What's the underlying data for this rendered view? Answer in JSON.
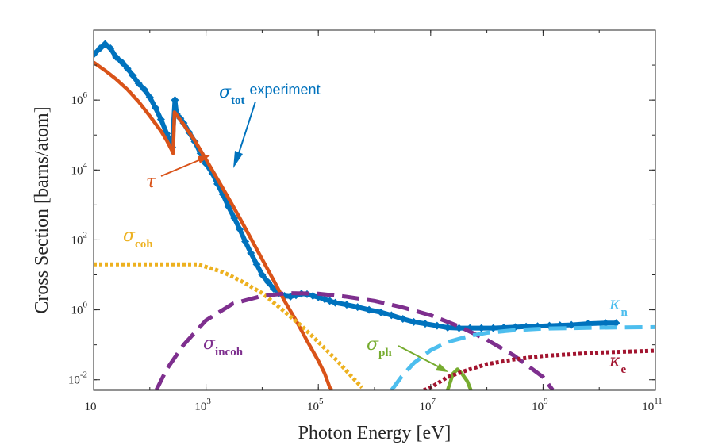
{
  "chart_data": {
    "type": "line",
    "xlabel": "Photon Energy [eV]",
    "ylabel": "Cross Section [barns/atom]",
    "xscale": "log",
    "yscale": "log",
    "xlim": [
      10,
      100000000000
    ],
    "ylim": [
      0.005,
      100000000
    ],
    "grid": false,
    "x_ticks": [
      {
        "value": 10,
        "base": "10",
        "exp": ""
      },
      {
        "value": 1000,
        "base": "10",
        "exp": "3"
      },
      {
        "value": 100000,
        "base": "10",
        "exp": "5"
      },
      {
        "value": 10000000,
        "base": "10",
        "exp": "7"
      },
      {
        "value": 1000000000,
        "base": "10",
        "exp": "9"
      },
      {
        "value": 100000000000,
        "base": "10",
        "exp": "11"
      }
    ],
    "y_ticks": [
      {
        "value": 0.01,
        "base": "10",
        "exp": "-2"
      },
      {
        "value": 1,
        "base": "10",
        "exp": "0"
      },
      {
        "value": 100,
        "base": "10",
        "exp": "2"
      },
      {
        "value": 10000,
        "base": "10",
        "exp": "4"
      },
      {
        "value": 1000000,
        "base": "10",
        "exp": "6"
      }
    ],
    "series": [
      {
        "name": "σ_tot experiment",
        "color": "#0072BD",
        "style": "markers",
        "points": [
          [
            10,
            20000000
          ],
          [
            13,
            30000000
          ],
          [
            16,
            40000000
          ],
          [
            20,
            30000000
          ],
          [
            25,
            17000000
          ],
          [
            32,
            12000000
          ],
          [
            40,
            8000000
          ],
          [
            50,
            5000000
          ],
          [
            63,
            3000000
          ],
          [
            80,
            2000000
          ],
          [
            100,
            1200000
          ],
          [
            126,
            600000
          ],
          [
            158,
            280000
          ],
          [
            200,
            110000
          ],
          [
            250,
            45000
          ],
          [
            280,
            1000000
          ],
          [
            300,
            400000
          ],
          [
            350,
            300000
          ],
          [
            400,
            220000
          ],
          [
            500,
            120000
          ],
          [
            630,
            65000
          ],
          [
            800,
            30000
          ],
          [
            1000,
            15000
          ],
          [
            1300,
            8000
          ],
          [
            1600,
            4000
          ],
          [
            2000,
            2000
          ],
          [
            2500,
            900
          ],
          [
            3200,
            420
          ],
          [
            4000,
            200
          ],
          [
            5000,
            90
          ],
          [
            6300,
            42
          ],
          [
            8000,
            20
          ],
          [
            10000,
            10
          ],
          [
            13000,
            6
          ],
          [
            16000,
            4
          ],
          [
            20000,
            3
          ],
          [
            25000,
            2.5
          ],
          [
            32000,
            2.4
          ],
          [
            40000,
            2.6
          ],
          [
            50000,
            2.9
          ],
          [
            63000,
            2.8
          ],
          [
            80000,
            2.5
          ],
          [
            100000,
            2.3
          ],
          [
            130000,
            2.0
          ],
          [
            160000,
            1.8
          ],
          [
            200000,
            1.6
          ],
          [
            320000,
            1.4
          ],
          [
            500000,
            1.2
          ],
          [
            800000,
            1.0
          ],
          [
            1300000,
            0.85
          ],
          [
            2000000,
            0.7
          ],
          [
            3200000,
            0.55
          ],
          [
            5000000,
            0.45
          ],
          [
            8000000,
            0.4
          ],
          [
            13000000,
            0.35
          ],
          [
            20000000,
            0.31
          ],
          [
            32000000,
            0.3
          ],
          [
            50000000,
            0.3
          ],
          [
            80000000,
            0.3
          ],
          [
            130000000,
            0.3
          ],
          [
            200000000,
            0.31
          ],
          [
            320000000,
            0.32
          ],
          [
            500000000,
            0.33
          ],
          [
            800000000,
            0.34
          ],
          [
            1300000000,
            0.35
          ],
          [
            2000000000,
            0.36
          ],
          [
            3200000000,
            0.37
          ],
          [
            6300000000,
            0.4
          ],
          [
            13000000000,
            0.42
          ],
          [
            20000000000,
            0.42
          ]
        ]
      },
      {
        "name": "τ",
        "color": "#D95319",
        "style": "solid",
        "points": [
          [
            10,
            12000000
          ],
          [
            16,
            7000000
          ],
          [
            25,
            4000000
          ],
          [
            40,
            2000000
          ],
          [
            63,
            900000
          ],
          [
            100,
            350000
          ],
          [
            158,
            130000
          ],
          [
            200,
            70000
          ],
          [
            250,
            35000
          ],
          [
            260,
            30000
          ],
          [
            275,
            450000
          ],
          [
            300,
            380000
          ],
          [
            400,
            200000
          ],
          [
            630,
            70000
          ],
          [
            1000,
            20000
          ],
          [
            1600,
            5500
          ],
          [
            2500,
            1600
          ],
          [
            4000,
            420
          ],
          [
            6300,
            110
          ],
          [
            10000,
            28
          ],
          [
            16000,
            7
          ],
          [
            25000,
            1.8
          ],
          [
            40000,
            0.5
          ],
          [
            63000,
            0.13
          ],
          [
            100000,
            0.035
          ],
          [
            130000,
            0.015
          ],
          [
            160000,
            0.006
          ],
          [
            175000,
            0.005
          ]
        ]
      },
      {
        "name": "σ_coh",
        "color": "#EDB120",
        "style": "dotted",
        "points": [
          [
            10,
            20
          ],
          [
            100,
            20
          ],
          [
            300,
            20
          ],
          [
            700,
            20
          ],
          [
            1000,
            17
          ],
          [
            2000,
            12
          ],
          [
            4000,
            7
          ],
          [
            10000,
            3
          ],
          [
            20000,
            1.2
          ],
          [
            50000,
            0.35
          ],
          [
            100000,
            0.12
          ],
          [
            200000,
            0.04
          ],
          [
            400000,
            0.012
          ],
          [
            600000,
            0.006
          ]
        ]
      },
      {
        "name": "σ_incoh",
        "color": "#7E2F8E",
        "style": "dashed",
        "points": [
          [
            130,
            0.005
          ],
          [
            200,
            0.02
          ],
          [
            400,
            0.1
          ],
          [
            1000,
            0.5
          ],
          [
            3000,
            1.5
          ],
          [
            10000,
            2.5
          ],
          [
            30000,
            3
          ],
          [
            100000,
            2.9
          ],
          [
            300000,
            2.4
          ],
          [
            1000000,
            1.8
          ],
          [
            3000000,
            1.2
          ],
          [
            10000000,
            0.7
          ],
          [
            30000000,
            0.35
          ],
          [
            100000000,
            0.14
          ],
          [
            300000000,
            0.05
          ],
          [
            1000000000,
            0.012
          ],
          [
            1500000000,
            0.005
          ]
        ]
      },
      {
        "name": "σ_ph",
        "color": "#77AC30",
        "style": "solid",
        "points": [
          [
            20000000,
            0.005
          ],
          [
            25000000,
            0.015
          ],
          [
            30000000,
            0.02
          ],
          [
            36000000,
            0.015
          ],
          [
            45000000,
            0.009
          ],
          [
            52000000,
            0.005
          ]
        ]
      },
      {
        "name": "κ_n",
        "color": "#4DBEEE",
        "style": "dashed",
        "points": [
          [
            2000000,
            0.005
          ],
          [
            3000000,
            0.012
          ],
          [
            5000000,
            0.03
          ],
          [
            10000000,
            0.07
          ],
          [
            20000000,
            0.12
          ],
          [
            50000000,
            0.18
          ],
          [
            100000000,
            0.22
          ],
          [
            300000000,
            0.26
          ],
          [
            1000000000,
            0.29
          ],
          [
            10000000000,
            0.31
          ],
          [
            100000000000,
            0.32
          ]
        ]
      },
      {
        "name": "κ_e",
        "color": "#A2142F",
        "style": "dotted",
        "points": [
          [
            7500000,
            0.005
          ],
          [
            10000000,
            0.006
          ],
          [
            20000000,
            0.012
          ],
          [
            50000000,
            0.02
          ],
          [
            100000000,
            0.028
          ],
          [
            300000000,
            0.038
          ],
          [
            1000000000,
            0.048
          ],
          [
            10000000000,
            0.06
          ],
          [
            100000000000,
            0.068
          ]
        ]
      }
    ],
    "annotations": [
      {
        "symbol": "σ",
        "sub": "tot",
        "text": "experiment",
        "color": "#0072BD"
      },
      {
        "symbol": "τ",
        "sub": "",
        "text": "",
        "color": "#D95319"
      },
      {
        "symbol": "σ",
        "sub": "coh",
        "text": "",
        "color": "#EDB120"
      },
      {
        "symbol": "σ",
        "sub": "incoh",
        "text": "",
        "color": "#7E2F8E"
      },
      {
        "symbol": "σ",
        "sub": "ph",
        "text": "",
        "color": "#77AC30"
      },
      {
        "symbol": "κ",
        "sub": "n",
        "text": "",
        "color": "#4DBEEE"
      },
      {
        "symbol": "κ",
        "sub": "e",
        "text": "",
        "color": "#A2142F"
      }
    ]
  }
}
